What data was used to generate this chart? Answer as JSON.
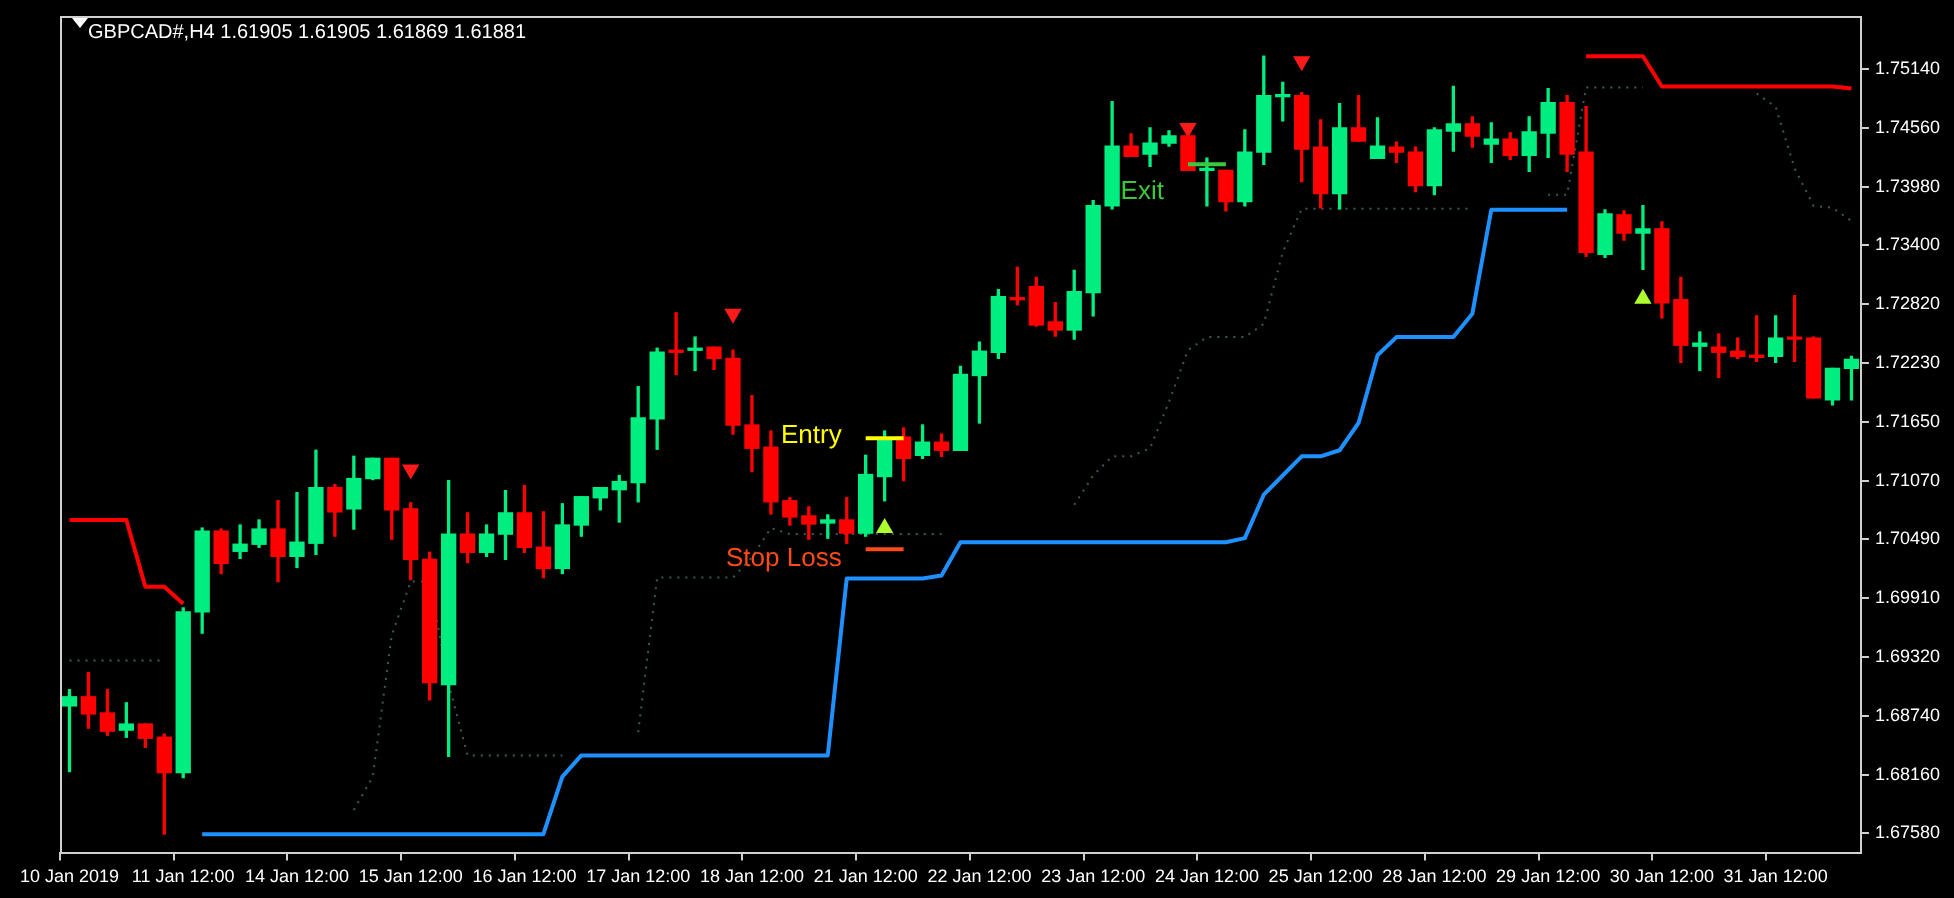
{
  "chart_data": {
    "type": "candlestick",
    "title": "GBPCAD#,H4 1.61905 1.61905 1.61869 1.61881",
    "categories": [
      "10 Jan 2019",
      null,
      null,
      null,
      null,
      null,
      "11 Jan 12:00",
      null,
      null,
      null,
      null,
      null,
      "14 Jan 12:00",
      null,
      null,
      null,
      null,
      null,
      "15 Jan 12:00",
      null,
      null,
      null,
      null,
      null,
      "16 Jan 12:00",
      null,
      null,
      null,
      null,
      null,
      "17 Jan 12:00",
      null,
      null,
      null,
      null,
      null,
      "18 Jan 12:00",
      null,
      null,
      null,
      null,
      null,
      "21 Jan 12:00",
      null,
      null,
      null,
      null,
      null,
      "22 Jan 12:00",
      null,
      null,
      null,
      null,
      null,
      "23 Jan 12:00",
      null,
      null,
      null,
      null,
      null,
      "24 Jan 12:00",
      null,
      null,
      null,
      null,
      null,
      "25 Jan 12:00",
      null,
      null,
      null,
      null,
      null,
      "28 Jan 12:00",
      null,
      null,
      null,
      null,
      null,
      "29 Jan 12:00",
      null,
      null,
      null,
      null,
      null,
      "30 Jan 12:00",
      null,
      null,
      null,
      null,
      null,
      "31 Jan 12:00",
      null,
      null,
      null,
      null
    ],
    "ohlc": [
      [
        1.6884,
        1.69,
        1.6819,
        1.6893
      ],
      [
        1.6893,
        1.6917,
        1.6862,
        1.6876
      ],
      [
        1.6877,
        1.69,
        1.6855,
        1.6859
      ],
      [
        1.686,
        1.6887,
        1.6853,
        1.6866
      ],
      [
        1.6866,
        1.6866,
        1.6843,
        1.6852
      ],
      [
        1.6853,
        1.6856,
        1.6757,
        1.6818
      ],
      [
        1.6818,
        1.6981,
        1.6813,
        1.6977
      ],
      [
        1.6977,
        1.706,
        1.6956,
        1.7057
      ],
      [
        1.7057,
        1.7059,
        1.7015,
        1.7025
      ],
      [
        1.7037,
        1.7063,
        1.703,
        1.7044
      ],
      [
        1.7044,
        1.7068,
        1.7041,
        1.7059
      ],
      [
        1.7059,
        1.7087,
        1.7007,
        1.7032
      ],
      [
        1.7032,
        1.7095,
        1.7021,
        1.7046
      ],
      [
        1.7045,
        1.7137,
        1.7034,
        1.71
      ],
      [
        1.71,
        1.7103,
        1.7052,
        1.7076
      ],
      [
        1.7079,
        1.7131,
        1.7059,
        1.7109
      ],
      [
        1.7109,
        1.7129,
        1.7108,
        1.7129
      ],
      [
        1.7129,
        1.7129,
        1.7049,
        1.7078
      ],
      [
        1.7079,
        1.7085,
        1.7009,
        1.7029
      ],
      [
        1.7029,
        1.7036,
        1.689,
        1.6907
      ],
      [
        1.6905,
        1.7107,
        1.6834,
        1.7054
      ],
      [
        1.7054,
        1.7075,
        1.7026,
        1.7036
      ],
      [
        1.7036,
        1.7063,
        1.7032,
        1.7054
      ],
      [
        1.7054,
        1.7097,
        1.7029,
        1.7075
      ],
      [
        1.7075,
        1.7102,
        1.7036,
        1.7041
      ],
      [
        1.7041,
        1.7076,
        1.7011,
        1.702
      ],
      [
        1.702,
        1.7084,
        1.7015,
        1.7063
      ],
      [
        1.7063,
        1.7091,
        1.7052,
        1.7091
      ],
      [
        1.709,
        1.71,
        1.7078,
        1.71
      ],
      [
        1.7098,
        1.7112,
        1.7066,
        1.7106
      ],
      [
        1.7105,
        1.72,
        1.7086,
        1.7169
      ],
      [
        1.7168,
        1.7238,
        1.7138,
        1.7234
      ],
      [
        1.7236,
        1.7273,
        1.7212,
        1.7234
      ],
      [
        1.7236,
        1.7249,
        1.7216,
        1.7238
      ],
      [
        1.7239,
        1.7239,
        1.7217,
        1.7228
      ],
      [
        1.7228,
        1.7236,
        1.7153,
        1.7162
      ],
      [
        1.7162,
        1.7191,
        1.7116,
        1.7139
      ],
      [
        1.714,
        1.7156,
        1.7074,
        1.7086
      ],
      [
        1.7087,
        1.709,
        1.7063,
        1.7071
      ],
      [
        1.7072,
        1.7081,
        1.7049,
        1.7064
      ],
      [
        1.7065,
        1.7073,
        1.705,
        1.7068
      ],
      [
        1.7068,
        1.709,
        1.7045,
        1.7055
      ],
      [
        1.7055,
        1.7132,
        1.7052,
        1.7113
      ],
      [
        1.7111,
        1.7156,
        1.7087,
        1.7148
      ],
      [
        1.715,
        1.7159,
        1.7107,
        1.7129
      ],
      [
        1.7132,
        1.7162,
        1.7129,
        1.7145
      ],
      [
        1.7145,
        1.7153,
        1.7131,
        1.7137
      ],
      [
        1.7137,
        1.722,
        1.7137,
        1.7212
      ],
      [
        1.7211,
        1.7244,
        1.7164,
        1.7235
      ],
      [
        1.7234,
        1.7296,
        1.7228,
        1.7289
      ],
      [
        1.7288,
        1.7318,
        1.7281,
        1.7286
      ],
      [
        1.7299,
        1.7308,
        1.726,
        1.7261
      ],
      [
        1.7264,
        1.7283,
        1.725,
        1.7256
      ],
      [
        1.7256,
        1.7315,
        1.7247,
        1.7294
      ],
      [
        1.7293,
        1.7384,
        1.727,
        1.7379
      ],
      [
        1.7379,
        1.7482,
        1.7376,
        1.7438
      ],
      [
        1.7438,
        1.745,
        1.7428,
        1.7428
      ],
      [
        1.743,
        1.7456,
        1.7418,
        1.7441
      ],
      [
        1.7441,
        1.7453,
        1.7438,
        1.7448
      ],
      [
        1.7448,
        1.7448,
        1.7414,
        1.7414
      ],
      [
        1.7414,
        1.7426,
        1.7379,
        1.7416
      ],
      [
        1.7414,
        1.7414,
        1.7374,
        1.7383
      ],
      [
        1.7383,
        1.7454,
        1.7379,
        1.7432
      ],
      [
        1.7432,
        1.7527,
        1.742,
        1.7488
      ],
      [
        1.7487,
        1.7501,
        1.7463,
        1.7488
      ],
      [
        1.7488,
        1.7491,
        1.7403,
        1.7435
      ],
      [
        1.7437,
        1.7464,
        1.7377,
        1.7391
      ],
      [
        1.7391,
        1.748,
        1.7376,
        1.7456
      ],
      [
        1.7456,
        1.7488,
        1.7443,
        1.7443
      ],
      [
        1.7426,
        1.7466,
        1.7426,
        1.7438
      ],
      [
        1.7437,
        1.7442,
        1.7422,
        1.7432
      ],
      [
        1.7432,
        1.7437,
        1.7393,
        1.7399
      ],
      [
        1.7399,
        1.7456,
        1.739,
        1.7454
      ],
      [
        1.7453,
        1.7497,
        1.7433,
        1.746
      ],
      [
        1.746,
        1.7467,
        1.7437,
        1.7448
      ],
      [
        1.744,
        1.7461,
        1.7422,
        1.7445
      ],
      [
        1.7445,
        1.7451,
        1.7425,
        1.7429
      ],
      [
        1.7429,
        1.7467,
        1.7413,
        1.7452
      ],
      [
        1.7451,
        1.7495,
        1.7427,
        1.7481
      ],
      [
        1.7481,
        1.7488,
        1.7413,
        1.743
      ],
      [
        1.7432,
        1.7477,
        1.7329,
        1.7333
      ],
      [
        1.7331,
        1.7375,
        1.7328,
        1.7371
      ],
      [
        1.737,
        1.7374,
        1.7345,
        1.7352
      ],
      [
        1.7352,
        1.7379,
        1.7316,
        1.7356
      ],
      [
        1.7356,
        1.7363,
        1.7268,
        1.7283
      ],
      [
        1.7286,
        1.7308,
        1.7224,
        1.7241
      ],
      [
        1.724,
        1.7254,
        1.7216,
        1.7243
      ],
      [
        1.7239,
        1.7252,
        1.7209,
        1.7234
      ],
      [
        1.7235,
        1.7248,
        1.7228,
        1.723
      ],
      [
        1.7231,
        1.727,
        1.7225,
        1.7229
      ],
      [
        1.723,
        1.727,
        1.7224,
        1.7248
      ],
      [
        1.7249,
        1.729,
        1.7225,
        1.7247
      ],
      [
        1.7248,
        1.7249,
        1.7189,
        1.7189
      ],
      [
        1.7187,
        1.7218,
        1.7182,
        1.7218
      ],
      [
        1.7218,
        1.723,
        1.7187,
        1.7227
      ]
    ],
    "colors": [
      "#00ee80",
      "#ff0000",
      "#ff0000",
      "#00ee80",
      "#ff0000",
      "#ff0000",
      "#00ee80",
      "#00ee80",
      "#ff0000",
      "#00ee80",
      "#00ee80",
      "#ff0000",
      "#00ee80",
      "#00ee80",
      "#ff0000",
      "#00ee80",
      "#00ee80",
      "#ff0000",
      "#ff0000",
      "#ff0000",
      "#00ee80",
      "#ff0000",
      "#00ee80",
      "#00ee80",
      "#ff0000",
      "#ff0000",
      "#00ee80",
      "#00ee80",
      "#00ee80",
      "#00ee80",
      "#00ee80",
      "#00ee80",
      "#ff0000",
      "#00ee80",
      "#ff0000",
      "#ff0000",
      "#ff0000",
      "#ff0000",
      "#ff0000",
      "#ff0000",
      "#00ee80",
      "#ff0000",
      "#00ee80",
      "#00ee80",
      "#ff0000",
      "#00ee80",
      "#ff0000",
      "#00ee80",
      "#00ee80",
      "#00ee80",
      "#ff0000",
      "#ff0000",
      "#ff0000",
      "#00ee80",
      "#00ee80",
      "#00ee80",
      "#ff0000",
      "#00ee80",
      "#00ee80",
      "#ff0000",
      "#00ee80",
      "#ff0000",
      "#00ee80",
      "#00ee80",
      "#00ee80",
      "#ff0000",
      "#ff0000",
      "#00ee80",
      "#ff0000",
      "#00ee80",
      "#ff0000",
      "#ff0000",
      "#00ee80",
      "#00ee80",
      "#ff0000",
      "#00ee80",
      "#ff0000",
      "#00ee80",
      "#00ee80",
      "#ff0000",
      "#ff0000",
      "#00ee80",
      "#ff0000",
      "#00ee80",
      "#ff0000",
      "#ff0000",
      "#00ee80",
      "#ff0000",
      "#ff0000",
      "#ff0000",
      "#00ee80",
      "#ff0000",
      "#ff0000",
      "#00ee80",
      "#00ee80"
    ],
    "ylim": [
      1.6739,
      1.7566
    ],
    "yticks": [
      {
        "value": 1.7514,
        "label": "1.75140"
      },
      {
        "value": 1.7456,
        "label": "1.74560"
      },
      {
        "value": 1.7398,
        "label": "1.73980"
      },
      {
        "value": 1.734,
        "label": "1.73400"
      },
      {
        "value": 1.7282,
        "label": "1.72820"
      },
      {
        "value": 1.7223,
        "label": "1.72230"
      },
      {
        "value": 1.7165,
        "label": "1.71650"
      },
      {
        "value": 1.7107,
        "label": "1.71070"
      },
      {
        "value": 1.7049,
        "label": "1.70490"
      },
      {
        "value": 1.6991,
        "label": "1.69910"
      },
      {
        "value": 1.6932,
        "label": "1.69320"
      },
      {
        "value": 1.6874,
        "label": "1.68740"
      },
      {
        "value": 1.6816,
        "label": "1.68160"
      },
      {
        "value": 1.6758,
        "label": "1.67580"
      }
    ],
    "series": [
      {
        "type": "line",
        "color": "#ff0000",
        "marker": "none",
        "line_style": "solid",
        "values": [
          1.7068,
          1.7068,
          1.7068,
          1.7068,
          1.7002,
          1.7002,
          1.6985,
          null,
          null,
          null,
          null,
          null,
          null,
          null,
          null,
          null,
          null,
          null,
          null,
          null,
          null,
          null,
          null,
          null,
          null,
          null,
          null,
          null,
          null,
          null,
          null,
          null,
          null,
          null,
          null,
          null,
          null,
          null,
          null,
          null,
          null,
          null,
          null,
          null,
          null,
          null,
          null,
          null,
          null,
          null,
          null,
          null,
          null,
          null,
          null,
          null,
          null,
          null,
          null,
          null,
          null,
          null,
          null,
          null,
          null,
          null,
          null,
          null,
          null,
          null,
          null,
          null,
          null,
          null,
          null,
          null,
          null,
          null,
          null,
          null,
          1.7527,
          1.7527,
          1.7527,
          1.7527,
          1.7497,
          1.7497,
          1.7497,
          1.7497,
          1.7497,
          1.7497,
          1.7497,
          1.7497,
          1.7497,
          1.7497,
          1.7495
        ]
      },
      {
        "type": "line",
        "color": "#1e90ff",
        "marker": "none",
        "line_style": "solid",
        "values": [
          null,
          null,
          null,
          null,
          null,
          null,
          null,
          1.6757,
          1.6757,
          1.6757,
          1.6757,
          1.6757,
          1.6757,
          1.6757,
          1.6757,
          1.6757,
          1.6757,
          1.6757,
          1.6757,
          1.6757,
          1.6757,
          1.6757,
          1.6757,
          1.6757,
          1.6757,
          1.6757,
          1.6814,
          1.6835,
          1.6835,
          1.6835,
          1.6835,
          1.6835,
          1.6835,
          1.6835,
          1.6835,
          1.6835,
          1.6835,
          1.6835,
          1.6835,
          1.6835,
          1.6835,
          1.701,
          1.701,
          1.701,
          1.701,
          1.701,
          1.7013,
          1.7046,
          1.7046,
          1.7046,
          1.7046,
          1.7046,
          1.7046,
          1.7046,
          1.7046,
          1.7046,
          1.7046,
          1.7046,
          1.7046,
          1.7046,
          1.7046,
          1.7046,
          1.705,
          1.7093,
          1.7112,
          1.7131,
          1.7131,
          1.7137,
          1.7164,
          1.7231,
          1.7249,
          1.7249,
          1.7249,
          1.7249,
          1.7272,
          1.7375,
          1.7375,
          1.7375,
          1.7375,
          1.7375,
          null,
          null,
          null,
          null,
          null,
          null,
          null,
          null,
          null,
          null,
          null,
          null,
          null,
          null,
          null
        ]
      },
      {
        "type": "line",
        "color": "#3c5a5a",
        "marker": "none",
        "line_style": "dotted",
        "values": [
          1.6929,
          1.6929,
          1.6929,
          1.6929,
          1.6929,
          1.6929,
          null,
          null,
          null,
          null,
          null,
          null,
          null,
          null,
          null,
          1.6781,
          1.6814,
          1.6954,
          1.7007,
          1.7007,
          1.6906,
          1.6835,
          1.6835,
          1.6835,
          1.6835,
          1.6835,
          1.6835,
          null,
          null,
          null,
          1.6858,
          1.7011,
          1.7011,
          1.7011,
          1.7011,
          1.7011,
          1.7031,
          1.706,
          1.7054,
          1.7054,
          1.7054,
          1.7054,
          1.7054,
          1.7054,
          1.7054,
          1.7054,
          1.7054,
          null,
          null,
          null,
          null,
          null,
          null,
          1.7083,
          1.7112,
          1.7131,
          1.7131,
          1.7139,
          1.7185,
          1.7236,
          1.7249,
          1.7249,
          1.7249,
          1.7262,
          1.7333,
          1.7376,
          1.7376,
          1.7376,
          1.7376,
          1.7376,
          1.7376,
          1.7376,
          1.7376,
          1.7376,
          1.7376,
          null,
          null,
          null,
          1.739,
          1.739,
          1.7496,
          1.7496,
          1.7496,
          1.7496,
          null,
          null,
          null,
          null,
          null,
          1.749,
          1.7477,
          1.7416,
          1.7379,
          1.7377,
          1.7364
        ]
      },
      {
        "type": "line",
        "name": "Entry",
        "color": "#ffff00",
        "marker": "none",
        "line_style": "solid",
        "values": [
          null,
          null,
          null,
          null,
          null,
          null,
          null,
          null,
          null,
          null,
          null,
          null,
          null,
          null,
          null,
          null,
          null,
          null,
          null,
          null,
          null,
          null,
          null,
          null,
          null,
          null,
          null,
          null,
          null,
          null,
          null,
          null,
          null,
          null,
          null,
          null,
          null,
          null,
          null,
          null,
          null,
          null,
          1.7149,
          1.7149,
          1.7149,
          null,
          null,
          null,
          null,
          null,
          null,
          null,
          null,
          null,
          null,
          null,
          null,
          null,
          null,
          null,
          null,
          null,
          null,
          null,
          null,
          null,
          null,
          null,
          null,
          null,
          null,
          null,
          null,
          null,
          null,
          null,
          null,
          null,
          null,
          null,
          null,
          null,
          null,
          null,
          null,
          null,
          null,
          null,
          null,
          null,
          null,
          null,
          null,
          null,
          null
        ]
      },
      {
        "type": "line",
        "name": "Stop Loss",
        "color": "#ff4a1a",
        "marker": "none",
        "line_style": "solid",
        "values": [
          null,
          null,
          null,
          null,
          null,
          null,
          null,
          null,
          null,
          null,
          null,
          null,
          null,
          null,
          null,
          null,
          null,
          null,
          null,
          null,
          null,
          null,
          null,
          null,
          null,
          null,
          null,
          null,
          null,
          null,
          null,
          null,
          null,
          null,
          null,
          null,
          null,
          null,
          null,
          null,
          null,
          null,
          1.7039,
          1.7039,
          1.7039,
          null,
          null,
          null,
          null,
          null,
          null,
          null,
          null,
          null,
          null,
          null,
          null,
          null,
          null,
          null,
          null,
          null,
          null,
          null,
          null,
          null,
          null,
          null,
          null,
          null,
          null,
          null,
          null,
          null,
          null,
          null,
          null,
          null,
          null,
          null,
          null,
          null,
          null,
          null,
          null,
          null,
          null,
          null,
          null,
          null,
          null,
          null,
          null,
          null,
          null
        ]
      },
      {
        "type": "line",
        "name": "Exit",
        "color": "#3cc83c",
        "marker": "none",
        "line_style": "solid",
        "values": [
          null,
          null,
          null,
          null,
          null,
          null,
          null,
          null,
          null,
          null,
          null,
          null,
          null,
          null,
          null,
          null,
          null,
          null,
          null,
          null,
          null,
          null,
          null,
          null,
          null,
          null,
          null,
          null,
          null,
          null,
          null,
          null,
          null,
          null,
          null,
          null,
          null,
          null,
          null,
          null,
          null,
          null,
          null,
          null,
          null,
          null,
          null,
          null,
          null,
          null,
          null,
          null,
          null,
          null,
          null,
          null,
          null,
          null,
          null,
          1.742,
          1.742,
          1.742,
          null,
          null,
          null,
          null,
          null,
          null,
          null,
          null,
          null,
          null,
          null,
          null,
          null,
          null,
          null,
          null,
          null,
          null,
          null,
          null,
          null,
          null,
          null,
          null,
          null,
          null,
          null,
          null,
          null,
          null,
          null,
          null,
          null
        ]
      },
      {
        "type": "scatter",
        "color": "#ff1a1a",
        "marker": "triangle",
        "values": [
          null,
          null,
          null,
          null,
          null,
          null,
          null,
          null,
          null,
          null,
          null,
          null,
          null,
          null,
          null,
          null,
          null,
          null,
          1.7118,
          null,
          null,
          null,
          null,
          null,
          null,
          null,
          null,
          null,
          null,
          null,
          null,
          null,
          null,
          null,
          null,
          1.7272,
          null,
          null,
          null,
          null,
          null,
          null,
          null,
          null,
          null,
          null,
          null,
          null,
          null,
          null,
          null,
          null,
          null,
          null,
          null,
          null,
          null,
          null,
          null,
          1.7456,
          null,
          null,
          null,
          null,
          null,
          1.7522,
          null,
          null,
          null,
          null,
          null,
          null,
          null,
          null,
          null,
          null,
          null,
          null,
          null,
          null,
          null,
          null,
          null,
          null,
          null,
          null,
          null,
          null,
          null,
          null,
          null,
          null,
          null,
          null,
          null
        ]
      },
      {
        "type": "scatter",
        "color": "#adff2f",
        "marker": "triangle",
        "values": [
          null,
          null,
          null,
          null,
          null,
          null,
          null,
          null,
          null,
          null,
          null,
          null,
          null,
          null,
          null,
          null,
          null,
          null,
          null,
          null,
          null,
          null,
          null,
          null,
          null,
          null,
          null,
          null,
          null,
          null,
          null,
          null,
          null,
          null,
          null,
          null,
          null,
          null,
          null,
          null,
          null,
          null,
          null,
          1.706,
          null,
          null,
          null,
          null,
          null,
          null,
          null,
          null,
          null,
          null,
          null,
          null,
          null,
          null,
          null,
          null,
          null,
          null,
          null,
          null,
          null,
          null,
          null,
          null,
          null,
          null,
          null,
          null,
          null,
          null,
          null,
          null,
          null,
          null,
          null,
          null,
          null,
          null,
          null,
          1.7287,
          null,
          null,
          null,
          null,
          null,
          null,
          null,
          null,
          null,
          null,
          null
        ]
      }
    ]
  }
}
